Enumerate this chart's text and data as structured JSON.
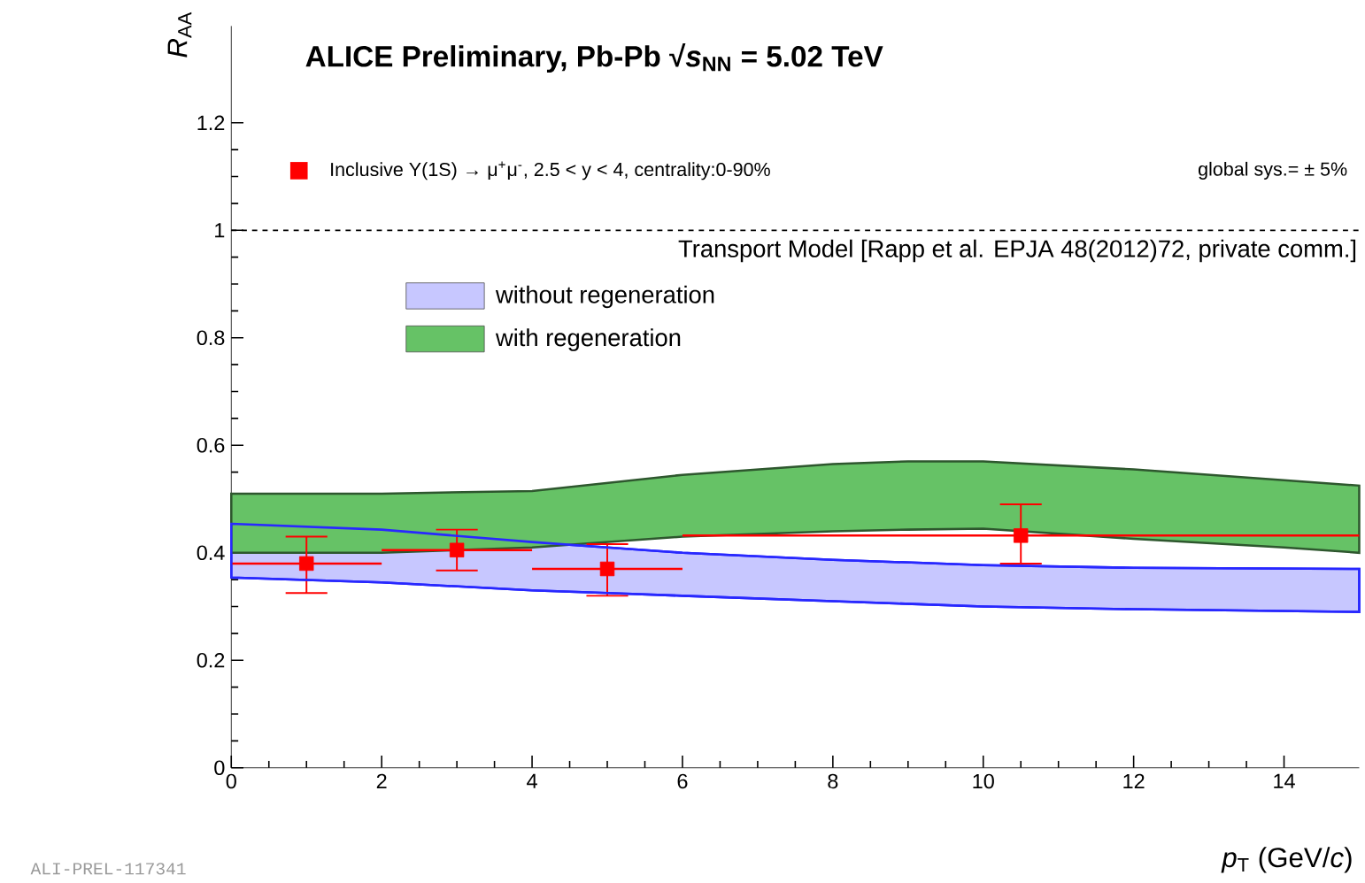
{
  "chart_data": {
    "type": "scatter",
    "title": "ALICE Preliminary, Pb-Pb √*s*$_{NN}$ = 5.02 TeV",
    "xlabel": "*p*$_{T}$ (GeV/*c*)",
    "ylabel": "*R*$_{AA}$",
    "legend_title": "Transport Model [Rapp et al. EPJA 48(2012)72, private comm.]",
    "legend": "top",
    "annotations": [
      "global sys.= ± 5%",
      "ALI-PREL-117341"
    ],
    "xlim": [
      0,
      15
    ],
    "ylim": [
      0,
      1.38
    ],
    "xticks": [
      0,
      2,
      4,
      6,
      8,
      10,
      12,
      14
    ],
    "yticks": [
      0,
      0.2,
      0.4,
      0.6,
      0.8,
      1,
      1.2
    ],
    "ref_lines": [
      {
        "axis": "y",
        "value": 1,
        "line_style": "dashed",
        "color": "#000000"
      }
    ],
    "series": [
      {
        "name": "without regeneration",
        "type": "area",
        "color": "#c7c7ff",
        "x": [
          0,
          2,
          4,
          5,
          6,
          8,
          10,
          12,
          15
        ],
        "values": [
          null,
          null,
          null,
          null,
          null,
          null,
          null,
          null,
          null
        ],
        "upper": [
          0.454,
          0.443,
          0.42,
          0.41,
          0.4,
          0.387,
          0.377,
          0.372,
          0.37
        ],
        "lower": [
          0.354,
          0.345,
          0.33,
          0.325,
          0.32,
          0.31,
          0.3,
          0.295,
          0.29
        ]
      },
      {
        "name": "with regeneration",
        "type": "area",
        "color": "#66c266",
        "x": [
          0,
          2,
          4,
          6,
          8,
          9,
          10,
          12,
          14,
          15
        ],
        "values": [
          null,
          null,
          null,
          null,
          null,
          null,
          null,
          null,
          null,
          null
        ],
        "upper": [
          0.51,
          0.51,
          0.515,
          0.545,
          0.565,
          0.57,
          0.57,
          0.555,
          0.535,
          0.525
        ],
        "lower": [
          0.4,
          0.4,
          0.41,
          0.43,
          0.44,
          0.443,
          0.445,
          0.426,
          0.41,
          0.4
        ]
      },
      {
        "name": "Inclusive Υ(1S) → μ$^{+}$μ$^{-}$, 2.5 < y < 4, centrality:0-90%",
        "marker": "square",
        "color": "#ff0000",
        "x": [
          1,
          3,
          5,
          10.5
        ],
        "values": [
          0.38,
          0.405,
          0.37,
          0.432
        ],
        "errors": [
          [
            0.325,
            0.43
          ],
          [
            0.367,
            0.443
          ],
          [
            0.32,
            0.416
          ],
          [
            0.38,
            0.49
          ]
        ],
        "xerrors": [
          1,
          1,
          1,
          4.5
        ]
      }
    ]
  }
}
